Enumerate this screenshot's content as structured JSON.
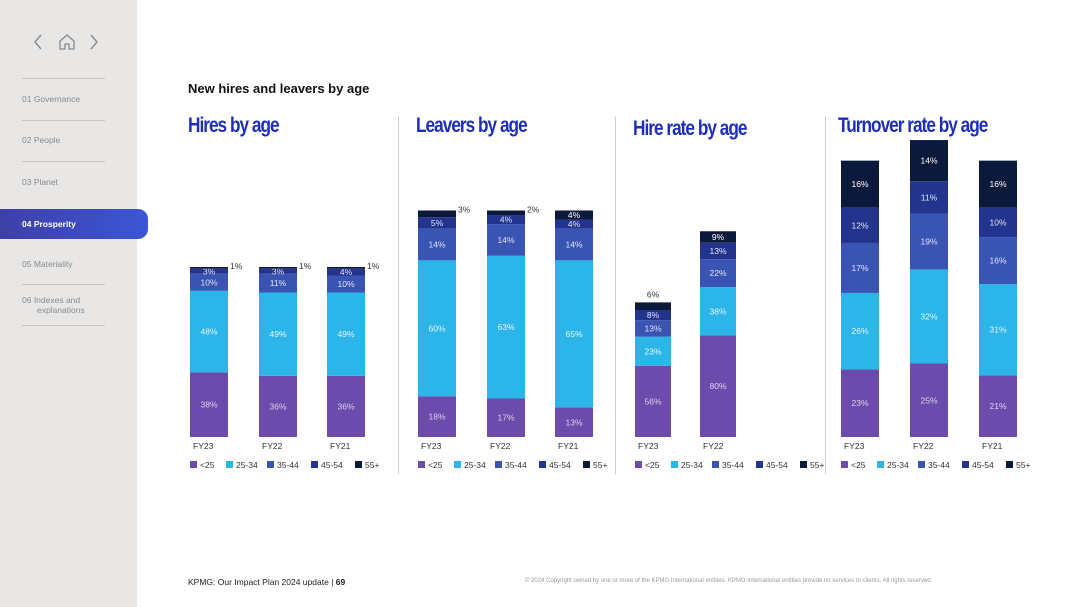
{
  "sidebar": {
    "items": [
      {
        "label": "01  Governance",
        "active": false
      },
      {
        "label": "02  People",
        "active": false
      },
      {
        "label": "03  Planet",
        "active": false
      },
      {
        "label": "04  Prosperity",
        "active": true
      },
      {
        "label": "05  Materiality",
        "active": false
      },
      {
        "label": "06  Indexes and",
        "label2": "explanations",
        "active": false
      }
    ]
  },
  "heading": "New hires and leavers by age",
  "colors": {
    "lt25": "#6b4bab",
    "a25_34": "#2bb5e8",
    "a35_44": "#3a54b4",
    "a45_54": "#23348f",
    "a55": "#0b1a3a",
    "title": "#1e2eb8"
  },
  "legend": [
    "<25",
    "25-34",
    "35-44",
    "45-54",
    "55+"
  ],
  "chart_data": [
    {
      "type": "bar",
      "stacked": true,
      "title": "Hires by age",
      "categories": [
        "FY23",
        "FY22",
        "FY21"
      ],
      "series": [
        {
          "name": "<25",
          "values": [
            38,
            36,
            36
          ]
        },
        {
          "name": "25-34",
          "values": [
            48,
            49,
            49
          ]
        },
        {
          "name": "35-44",
          "values": [
            10,
            11,
            10
          ]
        },
        {
          "name": "45-54",
          "values": [
            3,
            3,
            4
          ]
        },
        {
          "name": "55+",
          "values": [
            1,
            1,
            1
          ]
        }
      ],
      "labels": [
        [
          "38%",
          "48%",
          "10%",
          "3%",
          "1%"
        ],
        [
          "36%",
          "49%",
          "11%",
          "3%",
          "1%"
        ],
        [
          "36%",
          "49%",
          "10%",
          "4%",
          "1%"
        ]
      ]
    },
    {
      "type": "bar",
      "stacked": true,
      "title": "Leavers by age",
      "categories": [
        "FY23",
        "FY22",
        "FY21"
      ],
      "series": [
        {
          "name": "<25",
          "values": [
            18,
            17,
            13
          ]
        },
        {
          "name": "25-34",
          "values": [
            60,
            63,
            65
          ]
        },
        {
          "name": "35-44",
          "values": [
            14,
            14,
            14
          ]
        },
        {
          "name": "45-54",
          "values": [
            5,
            4,
            4
          ]
        },
        {
          "name": "55+",
          "values": [
            3,
            2,
            4
          ]
        }
      ],
      "labels": [
        [
          "18%",
          "60%",
          "14%",
          "5%",
          "3%"
        ],
        [
          "17%",
          "63%",
          "14%",
          "4%",
          "2%"
        ],
        [
          "13%",
          "65%",
          "14%",
          "4%",
          "4%"
        ]
      ]
    },
    {
      "type": "bar",
      "stacked": true,
      "title": "Hire rate by age",
      "categories": [
        "FY23",
        "FY22"
      ],
      "series": [
        {
          "name": "<25",
          "values": [
            56,
            80
          ]
        },
        {
          "name": "25-34",
          "values": [
            23,
            38
          ]
        },
        {
          "name": "35-44",
          "values": [
            13,
            22
          ]
        },
        {
          "name": "45-54",
          "values": [
            8,
            13
          ]
        },
        {
          "name": "55+",
          "values": [
            6,
            9
          ]
        }
      ],
      "labels": [
        [
          "56%",
          "23%",
          "13%",
          "8%",
          "6%"
        ],
        [
          "80%",
          "38%",
          "22%",
          "13%",
          "9%"
        ]
      ]
    },
    {
      "type": "bar",
      "stacked": true,
      "title": "Turnover rate by age",
      "categories": [
        "FY23",
        "FY22",
        "FY21"
      ],
      "series": [
        {
          "name": "<25",
          "values": [
            23,
            25,
            21
          ]
        },
        {
          "name": "25-34",
          "values": [
            26,
            32,
            31
          ]
        },
        {
          "name": "35-44",
          "values": [
            17,
            19,
            16
          ]
        },
        {
          "name": "45-54",
          "values": [
            12,
            11,
            10
          ]
        },
        {
          "name": "55+",
          "values": [
            16,
            14,
            16
          ]
        }
      ],
      "labels": [
        [
          "23%",
          "26%",
          "17%",
          "12%",
          "16%"
        ],
        [
          "25%",
          "32%",
          "19%",
          "11%",
          "14%"
        ],
        [
          "21%",
          "31%",
          "16%",
          "10%",
          "16%"
        ]
      ]
    }
  ],
  "footer": {
    "left": "KPMG: Our Impact Plan 2024 update",
    "sep": "|",
    "page": "69",
    "right": "© 2024 Copyright owned by one or more of the KPMG International entities. KPMG International entities provide no services to clients. All rights reserved."
  }
}
